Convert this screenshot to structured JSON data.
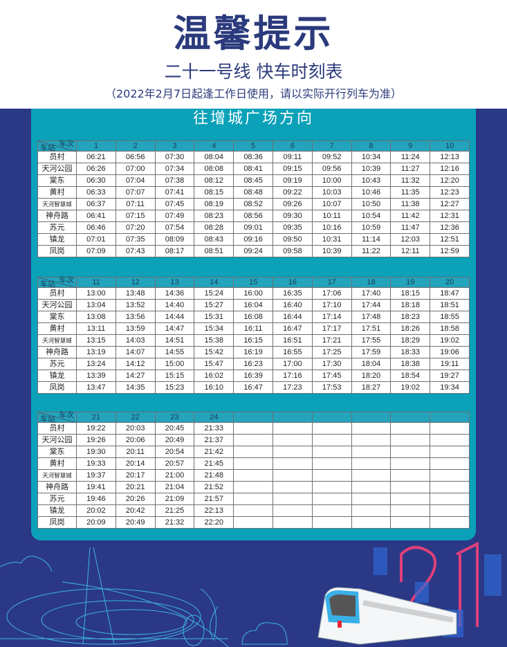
{
  "header": {
    "title": "温馨提示",
    "subtitle": "二十一号线 快车时刻表",
    "note": "（2022年2月7日起逢工作日使用，请以实际开行列车为准）"
  },
  "direction": "往增城广场方向",
  "corner": {
    "train_label": "车次",
    "station_label": "车站"
  },
  "stations": [
    "员村",
    "天河公园",
    "棠东",
    "黄村",
    "天河智慧城",
    "神舟路",
    "苏元",
    "镇龙",
    "凤岗"
  ],
  "tables": [
    {
      "trains": [
        "1",
        "2",
        "3",
        "4",
        "5",
        "6",
        "7",
        "8",
        "9",
        "10"
      ],
      "times": [
        [
          "06:21",
          "06:56",
          "07:30",
          "08:04",
          "08:36",
          "09:11",
          "09:52",
          "10:34",
          "11:24",
          "12:13"
        ],
        [
          "06:26",
          "07:00",
          "07:34",
          "08:08",
          "08:41",
          "09:15",
          "09:56",
          "10:39",
          "11:27",
          "12:16"
        ],
        [
          "06:30",
          "07:04",
          "07:38",
          "08:12",
          "08:45",
          "09:19",
          "10:00",
          "10:43",
          "11:32",
          "12:20"
        ],
        [
          "06:33",
          "07:07",
          "07:41",
          "08:15",
          "08:48",
          "09:22",
          "10:03",
          "10:46",
          "11:35",
          "12:23"
        ],
        [
          "06:37",
          "07:11",
          "07:45",
          "08:19",
          "08:52",
          "09:26",
          "10:07",
          "10:50",
          "11:38",
          "12:27"
        ],
        [
          "06:41",
          "07:15",
          "07:49",
          "08:23",
          "08:56",
          "09:30",
          "10:11",
          "10:54",
          "11:42",
          "12:31"
        ],
        [
          "06:46",
          "07:20",
          "07:54",
          "08:28",
          "09:01",
          "09:35",
          "10:16",
          "10:59",
          "11:47",
          "12:36"
        ],
        [
          "07:01",
          "07:35",
          "08:09",
          "08:43",
          "09:16",
          "09:50",
          "10:31",
          "11:14",
          "12:03",
          "12:51"
        ],
        [
          "07:09",
          "07:43",
          "08:17",
          "08:51",
          "09:24",
          "09:58",
          "10:39",
          "11:22",
          "12:11",
          "12:59"
        ]
      ]
    },
    {
      "trains": [
        "11",
        "12",
        "13",
        "14",
        "15",
        "16",
        "17",
        "18",
        "19",
        "20"
      ],
      "times": [
        [
          "13:00",
          "13:48",
          "14:36",
          "15:24",
          "16:00",
          "16:35",
          "17:06",
          "17:40",
          "18:15",
          "18:47"
        ],
        [
          "13:04",
          "13:52",
          "14:40",
          "15:27",
          "16:04",
          "16:40",
          "17:10",
          "17:44",
          "18:18",
          "18:51"
        ],
        [
          "13:08",
          "13:56",
          "14:44",
          "15:31",
          "16:08",
          "16:44",
          "17:14",
          "17:48",
          "18:23",
          "18:55"
        ],
        [
          "13:11",
          "13:59",
          "14:47",
          "15:34",
          "16:11",
          "16:47",
          "17:17",
          "17:51",
          "18:26",
          "18:58"
        ],
        [
          "13:15",
          "14:03",
          "14:51",
          "15:38",
          "16:15",
          "16:51",
          "17:21",
          "17:55",
          "18:29",
          "19:02"
        ],
        [
          "13:19",
          "14:07",
          "14:55",
          "15:42",
          "16:19",
          "16:55",
          "17:25",
          "17:59",
          "18:33",
          "19:06"
        ],
        [
          "13:24",
          "14:12",
          "15:00",
          "15:47",
          "16:23",
          "17:00",
          "17:30",
          "18:04",
          "18:38",
          "19:11"
        ],
        [
          "13:39",
          "14:27",
          "15:15",
          "16:02",
          "16:39",
          "17:16",
          "17:45",
          "18:20",
          "18:54",
          "19:27"
        ],
        [
          "13:47",
          "14:35",
          "15:23",
          "16:10",
          "16:47",
          "17:23",
          "17:53",
          "18:27",
          "19:02",
          "19:34"
        ]
      ]
    },
    {
      "trains": [
        "21",
        "22",
        "23",
        "24",
        "",
        "",
        "",
        "",
        "",
        ""
      ],
      "times": [
        [
          "19:22",
          "20:03",
          "20:45",
          "21:33",
          "",
          "",
          "",
          "",
          "",
          ""
        ],
        [
          "19:26",
          "20:06",
          "20:49",
          "21:37",
          "",
          "",
          "",
          "",
          "",
          ""
        ],
        [
          "19:30",
          "20:11",
          "20:54",
          "21:42",
          "",
          "",
          "",
          "",
          "",
          ""
        ],
        [
          "19:33",
          "20:14",
          "20:57",
          "21:45",
          "",
          "",
          "",
          "",
          "",
          ""
        ],
        [
          "19:37",
          "20:17",
          "21:00",
          "21:48",
          "",
          "",
          "",
          "",
          "",
          ""
        ],
        [
          "19:41",
          "20:21",
          "21:04",
          "21:52",
          "",
          "",
          "",
          "",
          "",
          ""
        ],
        [
          "19:46",
          "20:26",
          "21:09",
          "21:57",
          "",
          "",
          "",
          "",
          "",
          ""
        ],
        [
          "20:02",
          "20:42",
          "21:25",
          "22:13",
          "",
          "",
          "",
          "",
          "",
          ""
        ],
        [
          "20:09",
          "20:49",
          "21:32",
          "22:20",
          "",
          "",
          "",
          "",
          "",
          ""
        ]
      ]
    }
  ],
  "colors": {
    "navy": "#2b3886",
    "title": "#2b3a7c",
    "teal": "#0aa1b9",
    "header_cell": "#23a4bc",
    "accent_pink": "#e0407a"
  }
}
